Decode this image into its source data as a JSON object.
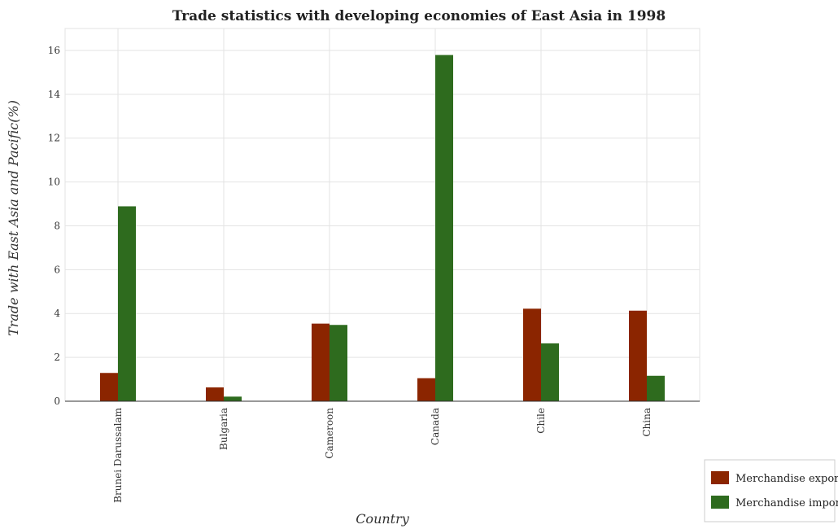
{
  "chart_data": {
    "type": "bar",
    "title": "Trade statistics with developing economies of East Asia in 1998",
    "xlabel": "Country",
    "ylabel": "Trade with East Asia and Pacific(%)",
    "categories": [
      "Brunei Darussalam",
      "Bulgaria",
      "Cameroon",
      "Canada",
      "Chile",
      "China"
    ],
    "series": [
      {
        "name": "Merchandise exports",
        "color": "#8b2500",
        "values": [
          1.29,
          0.63,
          3.54,
          1.05,
          4.22,
          4.13
        ]
      },
      {
        "name": "Merchandise imports",
        "color": "#2e6b1e",
        "values": [
          8.89,
          0.21,
          3.48,
          15.79,
          2.64,
          1.16
        ]
      }
    ],
    "ylim": [
      0,
      17
    ],
    "yticks": [
      0,
      2,
      4,
      6,
      8,
      10,
      12,
      14,
      16
    ],
    "grid": true,
    "legend_position": "bottom-right"
  }
}
